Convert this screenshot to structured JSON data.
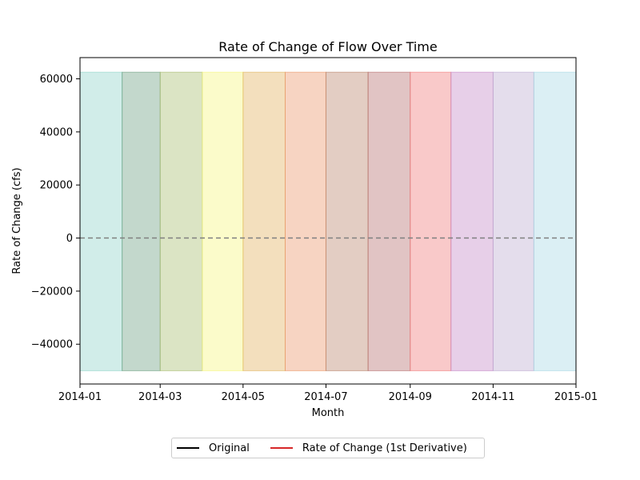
{
  "chart_data": {
    "type": "area",
    "title": "Rate of Change of Flow Over Time",
    "xlabel": "Month",
    "ylabel": "Rate of Change (cfs)",
    "xlim": [
      "2014-01-01",
      "2015-01-01"
    ],
    "ylim": [
      -55000,
      68000
    ],
    "x_ticks": [
      "2014-01",
      "2014-03",
      "2014-05",
      "2014-07",
      "2014-09",
      "2014-11",
      "2015-01"
    ],
    "y_ticks": [
      -40000,
      -20000,
      0,
      20000,
      40000,
      60000
    ],
    "y_tick_labels": [
      "−40000",
      "−20000",
      "0",
      "20000",
      "40000",
      "60000"
    ],
    "month_bands": {
      "y_range": [
        -50000,
        62500
      ],
      "bands": [
        {
          "start": "2014-01-01",
          "end": "2014-02-01",
          "color": "#8dd3c7"
        },
        {
          "start": "2014-02-01",
          "end": "2014-03-01",
          "color": "#6a9e7f"
        },
        {
          "start": "2014-03-01",
          "end": "2014-04-01",
          "color": "#a6bb6b"
        },
        {
          "start": "2014-04-01",
          "end": "2014-05-01",
          "color": "#f5f57a"
        },
        {
          "start": "2014-05-01",
          "end": "2014-06-01",
          "color": "#e0b05a"
        },
        {
          "start": "2014-06-01",
          "end": "2014-07-01",
          "color": "#ea9466"
        },
        {
          "start": "2014-07-01",
          "end": "2014-08-01",
          "color": "#b88268"
        },
        {
          "start": "2014-08-01",
          "end": "2014-09-01",
          "color": "#b56b6b"
        },
        {
          "start": "2014-09-01",
          "end": "2014-10-01",
          "color": "#f17878"
        },
        {
          "start": "2014-10-01",
          "end": "2014-11-01",
          "color": "#c386c6"
        },
        {
          "start": "2014-11-01",
          "end": "2014-12-01",
          "color": "#bcaad0"
        },
        {
          "start": "2014-12-01",
          "end": "2015-01-01",
          "color": "#a6d7e3"
        }
      ]
    },
    "reference_line": {
      "y": 0,
      "style": "dashed",
      "color": "#808080"
    },
    "legend": {
      "placement": "bottom-center",
      "entries": [
        {
          "label": "Original",
          "color": "#000000"
        },
        {
          "label": "Rate of Change (1st Derivative)",
          "color": "#d62728"
        }
      ]
    },
    "grid": false
  }
}
